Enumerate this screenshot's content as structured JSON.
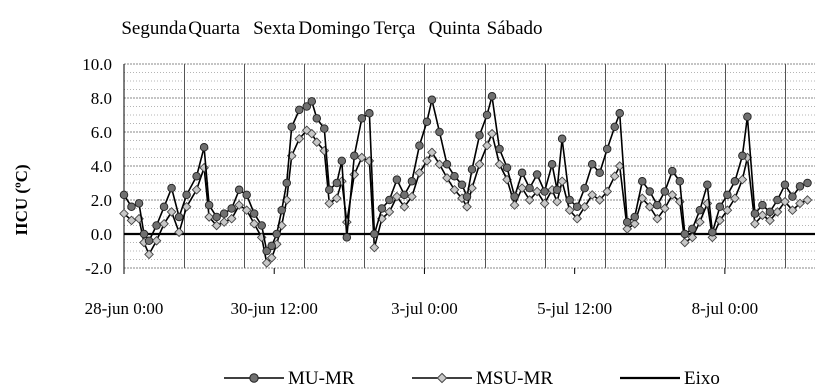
{
  "chart_data": {
    "type": "line",
    "title": "",
    "ylabel": "IICU (ºC)",
    "xlabel": "",
    "ylim": [
      -2.0,
      10.0
    ],
    "y_ticks": [
      "-2.0",
      "0.0",
      "2.0",
      "4.0",
      "6.0",
      "8.0",
      "10.0"
    ],
    "x_range": [
      "2013-06-28 00:00",
      "2013-07-09 12:00"
    ],
    "x_tick_labels": [
      "28-jun 0:00",
      "30-jun 12:00",
      "3-jul 0:00",
      "5-jul 12:00",
      "8-jul 0:00"
    ],
    "x_ticks": [
      "2013-06-28 00:00",
      "2013-06-30 12:00",
      "2013-07-03 00:00",
      "2013-07-05 12:00",
      "2013-07-08 00:00"
    ],
    "day_labels": [
      "Segunda",
      "Quarta",
      "Sexta",
      "Domingo",
      "Terça",
      "Quinta",
      "Sábado"
    ],
    "day_label_times": [
      "2013-06-28 12:00",
      "2013-06-29 12:00",
      "2013-06-30 12:00",
      "2013-07-01 12:00",
      "2013-07-02 12:00",
      "2013-07-03 12:00",
      "2013-07-04 12:00"
    ],
    "day_lines": [
      "2013-06-29 00:00",
      "2013-06-30 00:00",
      "2013-07-01 00:00",
      "2013-07-02 00:00",
      "2013-07-03 00:00",
      "2013-07-04 00:00",
      "2013-07-05 00:00",
      "2013-07-06 00:00",
      "2013-07-07 00:00",
      "2013-07-08 00:00",
      "2013-07-09 00:00"
    ],
    "grid": true,
    "legend": "bottom",
    "series": [
      {
        "name": "MU-MR",
        "color": "#000000",
        "marker_fill": "#707070",
        "marker": "circle",
        "values": [
          [
            "2013-06-28 00:00",
            2.3
          ],
          [
            "2013-06-28 03:00",
            1.6
          ],
          [
            "2013-06-28 06:00",
            1.8
          ],
          [
            "2013-06-28 08:00",
            0.0
          ],
          [
            "2013-06-28 10:00",
            -0.4
          ],
          [
            "2013-06-28 13:00",
            0.5
          ],
          [
            "2013-06-28 16:00",
            1.6
          ],
          [
            "2013-06-28 19:00",
            2.7
          ],
          [
            "2013-06-28 22:00",
            1.0
          ],
          [
            "2013-06-29 01:00",
            2.3
          ],
          [
            "2013-06-29 05:00",
            3.4
          ],
          [
            "2013-06-29 08:00",
            5.1
          ],
          [
            "2013-06-29 10:00",
            1.7
          ],
          [
            "2013-06-29 13:00",
            1.0
          ],
          [
            "2013-06-29 16:00",
            1.2
          ],
          [
            "2013-06-29 19:00",
            1.5
          ],
          [
            "2013-06-29 22:00",
            2.6
          ],
          [
            "2013-06-30 01:00",
            2.3
          ],
          [
            "2013-06-30 04:00",
            1.2
          ],
          [
            "2013-06-30 07:00",
            0.5
          ],
          [
            "2013-06-30 09:00",
            -1.0
          ],
          [
            "2013-06-30 11:00",
            -0.7
          ],
          [
            "2013-06-30 13:00",
            0.0
          ],
          [
            "2013-06-30 15:00",
            1.4
          ],
          [
            "2013-06-30 17:00",
            3.0
          ],
          [
            "2013-06-30 19:00",
            6.3
          ],
          [
            "2013-06-30 22:00",
            7.3
          ],
          [
            "2013-07-01 01:00",
            7.5
          ],
          [
            "2013-07-01 03:00",
            7.8
          ],
          [
            "2013-07-01 05:00",
            6.8
          ],
          [
            "2013-07-01 08:00",
            6.2
          ],
          [
            "2013-07-01 10:00",
            2.6
          ],
          [
            "2013-07-01 13:00",
            3.0
          ],
          [
            "2013-07-01 15:00",
            4.3
          ],
          [
            "2013-07-01 17:00",
            -0.2
          ],
          [
            "2013-07-01 20:00",
            4.6
          ],
          [
            "2013-07-01 23:00",
            6.8
          ],
          [
            "2013-07-02 02:00",
            7.1
          ],
          [
            "2013-07-02 04:00",
            0.0
          ],
          [
            "2013-07-02 07:00",
            1.5
          ],
          [
            "2013-07-02 10:00",
            2.0
          ],
          [
            "2013-07-02 13:00",
            3.2
          ],
          [
            "2013-07-02 16:00",
            2.3
          ],
          [
            "2013-07-02 19:00",
            3.1
          ],
          [
            "2013-07-02 22:00",
            5.2
          ],
          [
            "2013-07-03 01:00",
            6.6
          ],
          [
            "2013-07-03 03:00",
            7.9
          ],
          [
            "2013-07-03 06:00",
            6.0
          ],
          [
            "2013-07-03 09:00",
            4.1
          ],
          [
            "2013-07-03 12:00",
            3.4
          ],
          [
            "2013-07-03 15:00",
            2.9
          ],
          [
            "2013-07-03 17:00",
            2.2
          ],
          [
            "2013-07-03 19:00",
            3.8
          ],
          [
            "2013-07-03 22:00",
            5.8
          ],
          [
            "2013-07-04 01:00",
            7.0
          ],
          [
            "2013-07-04 03:00",
            8.1
          ],
          [
            "2013-07-04 06:00",
            5.0
          ],
          [
            "2013-07-04 09:00",
            3.9
          ],
          [
            "2013-07-04 12:00",
            2.2
          ],
          [
            "2013-07-04 15:00",
            3.6
          ],
          [
            "2013-07-04 18:00",
            2.7
          ],
          [
            "2013-07-04 21:00",
            3.5
          ],
          [
            "2013-07-05 00:00",
            2.5
          ],
          [
            "2013-07-05 03:00",
            4.1
          ],
          [
            "2013-07-05 05:00",
            2.6
          ],
          [
            "2013-07-05 07:00",
            5.6
          ],
          [
            "2013-07-05 10:00",
            2.0
          ],
          [
            "2013-07-05 13:00",
            1.6
          ],
          [
            "2013-07-05 16:00",
            2.7
          ],
          [
            "2013-07-05 19:00",
            4.1
          ],
          [
            "2013-07-05 22:00",
            3.6
          ],
          [
            "2013-07-06 01:00",
            5.0
          ],
          [
            "2013-07-06 04:00",
            6.3
          ],
          [
            "2013-07-06 06:00",
            7.1
          ],
          [
            "2013-07-06 09:00",
            0.7
          ],
          [
            "2013-07-06 12:00",
            1.0
          ],
          [
            "2013-07-06 15:00",
            3.1
          ],
          [
            "2013-07-06 18:00",
            2.5
          ],
          [
            "2013-07-06 21:00",
            1.7
          ],
          [
            "2013-07-07 00:00",
            2.5
          ],
          [
            "2013-07-07 03:00",
            3.7
          ],
          [
            "2013-07-07 06:00",
            3.1
          ],
          [
            "2013-07-07 08:00",
            0.0
          ],
          [
            "2013-07-07 11:00",
            0.3
          ],
          [
            "2013-07-07 14:00",
            1.4
          ],
          [
            "2013-07-07 17:00",
            2.9
          ],
          [
            "2013-07-07 19:00",
            0.1
          ],
          [
            "2013-07-07 22:00",
            1.6
          ],
          [
            "2013-07-08 01:00",
            2.3
          ],
          [
            "2013-07-08 04:00",
            3.1
          ],
          [
            "2013-07-08 07:00",
            4.6
          ],
          [
            "2013-07-08 09:00",
            6.9
          ],
          [
            "2013-07-08 12:00",
            1.2
          ],
          [
            "2013-07-08 15:00",
            1.7
          ],
          [
            "2013-07-08 18:00",
            1.3
          ],
          [
            "2013-07-08 21:00",
            2.0
          ],
          [
            "2013-07-09 00:00",
            2.9
          ],
          [
            "2013-07-09 03:00",
            2.2
          ],
          [
            "2013-07-09 06:00",
            2.8
          ],
          [
            "2013-07-09 09:00",
            3.0
          ]
        ]
      },
      {
        "name": "MSU-MR",
        "color": "#000000",
        "marker_fill": "#c8c8c8",
        "marker": "diamond",
        "values": [
          [
            "2013-06-28 00:00",
            1.2
          ],
          [
            "2013-06-28 03:00",
            0.8
          ],
          [
            "2013-06-28 06:00",
            0.9
          ],
          [
            "2013-06-28 08:00",
            -0.5
          ],
          [
            "2013-06-28 10:00",
            -1.2
          ],
          [
            "2013-06-28 13:00",
            -0.4
          ],
          [
            "2013-06-28 16:00",
            0.6
          ],
          [
            "2013-06-28 19:00",
            1.3
          ],
          [
            "2013-06-28 22:00",
            0.1
          ],
          [
            "2013-06-29 01:00",
            1.6
          ],
          [
            "2013-06-29 05:00",
            2.6
          ],
          [
            "2013-06-29 08:00",
            3.9
          ],
          [
            "2013-06-29 10:00",
            1.0
          ],
          [
            "2013-06-29 13:00",
            0.5
          ],
          [
            "2013-06-29 16:00",
            0.7
          ],
          [
            "2013-06-29 19:00",
            0.9
          ],
          [
            "2013-06-29 22:00",
            1.7
          ],
          [
            "2013-06-30 01:00",
            1.4
          ],
          [
            "2013-06-30 04:00",
            0.6
          ],
          [
            "2013-06-30 07:00",
            -0.2
          ],
          [
            "2013-06-30 09:00",
            -1.7
          ],
          [
            "2013-06-30 11:00",
            -1.4
          ],
          [
            "2013-06-30 13:00",
            -0.6
          ],
          [
            "2013-06-30 15:00",
            0.5
          ],
          [
            "2013-06-30 17:00",
            2.0
          ],
          [
            "2013-06-30 19:00",
            4.6
          ],
          [
            "2013-06-30 22:00",
            5.6
          ],
          [
            "2013-07-01 01:00",
            6.1
          ],
          [
            "2013-07-01 03:00",
            5.9
          ],
          [
            "2013-07-01 05:00",
            5.4
          ],
          [
            "2013-07-01 08:00",
            4.9
          ],
          [
            "2013-07-01 10:00",
            1.8
          ],
          [
            "2013-07-01 13:00",
            2.1
          ],
          [
            "2013-07-01 15:00",
            3.1
          ],
          [
            "2013-07-01 17:00",
            0.7
          ],
          [
            "2013-07-01 20:00",
            3.5
          ],
          [
            "2013-07-01 23:00",
            4.5
          ],
          [
            "2013-07-02 02:00",
            4.3
          ],
          [
            "2013-07-02 04:00",
            -0.8
          ],
          [
            "2013-07-02 07:00",
            0.9
          ],
          [
            "2013-07-02 10:00",
            1.3
          ],
          [
            "2013-07-02 13:00",
            2.2
          ],
          [
            "2013-07-02 16:00",
            1.6
          ],
          [
            "2013-07-02 19:00",
            2.2
          ],
          [
            "2013-07-02 22:00",
            3.6
          ],
          [
            "2013-07-03 01:00",
            4.3
          ],
          [
            "2013-07-03 03:00",
            4.8
          ],
          [
            "2013-07-03 06:00",
            4.1
          ],
          [
            "2013-07-03 09:00",
            3.3
          ],
          [
            "2013-07-03 12:00",
            2.6
          ],
          [
            "2013-07-03 15:00",
            2.1
          ],
          [
            "2013-07-03 17:00",
            1.6
          ],
          [
            "2013-07-03 19:00",
            2.7
          ],
          [
            "2013-07-03 22:00",
            4.1
          ],
          [
            "2013-07-04 01:00",
            5.2
          ],
          [
            "2013-07-04 03:00",
            5.9
          ],
          [
            "2013-07-04 06:00",
            4.1
          ],
          [
            "2013-07-04 09:00",
            3.2
          ],
          [
            "2013-07-04 12:00",
            1.7
          ],
          [
            "2013-07-04 15:00",
            2.7
          ],
          [
            "2013-07-04 18:00",
            2.0
          ],
          [
            "2013-07-04 21:00",
            2.5
          ],
          [
            "2013-07-05 00:00",
            1.8
          ],
          [
            "2013-07-05 03:00",
            2.6
          ],
          [
            "2013-07-05 05:00",
            1.9
          ],
          [
            "2013-07-05 07:00",
            3.1
          ],
          [
            "2013-07-05 10:00",
            1.4
          ],
          [
            "2013-07-05 13:00",
            0.9
          ],
          [
            "2013-07-05 16:00",
            1.6
          ],
          [
            "2013-07-05 19:00",
            2.3
          ],
          [
            "2013-07-05 22:00",
            2.0
          ],
          [
            "2013-07-06 01:00",
            2.5
          ],
          [
            "2013-07-06 04:00",
            3.4
          ],
          [
            "2013-07-06 06:00",
            4.0
          ],
          [
            "2013-07-06 09:00",
            0.3
          ],
          [
            "2013-07-06 12:00",
            0.6
          ],
          [
            "2013-07-06 15:00",
            2.1
          ],
          [
            "2013-07-06 18:00",
            1.6
          ],
          [
            "2013-07-06 21:00",
            0.9
          ],
          [
            "2013-07-07 00:00",
            1.5
          ],
          [
            "2013-07-07 03:00",
            2.3
          ],
          [
            "2013-07-07 06:00",
            1.9
          ],
          [
            "2013-07-07 08:00",
            -0.5
          ],
          [
            "2013-07-07 11:00",
            -0.2
          ],
          [
            "2013-07-07 14:00",
            0.7
          ],
          [
            "2013-07-07 17:00",
            1.8
          ],
          [
            "2013-07-07 19:00",
            -0.2
          ],
          [
            "2013-07-07 22:00",
            0.8
          ],
          [
            "2013-07-08 01:00",
            1.4
          ],
          [
            "2013-07-08 04:00",
            2.1
          ],
          [
            "2013-07-08 07:00",
            3.2
          ],
          [
            "2013-07-08 09:00",
            4.5
          ],
          [
            "2013-07-08 12:00",
            0.6
          ],
          [
            "2013-07-08 15:00",
            1.1
          ],
          [
            "2013-07-08 18:00",
            0.8
          ],
          [
            "2013-07-08 21:00",
            1.3
          ],
          [
            "2013-07-09 00:00",
            1.9
          ],
          [
            "2013-07-09 03:00",
            1.4
          ],
          [
            "2013-07-09 06:00",
            1.8
          ],
          [
            "2013-07-09 09:00",
            2.0
          ]
        ]
      },
      {
        "name": "Eixo",
        "color": "#000000",
        "marker": "none",
        "constant": 0.0
      }
    ]
  }
}
